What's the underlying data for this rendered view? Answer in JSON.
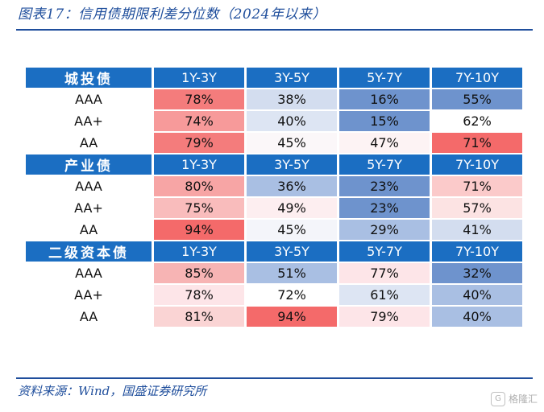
{
  "title": "图表17：信用债期限利差分位数（2024年以来）",
  "source": "资料来源：Wind，国盛证券研究所",
  "watermark": "格隆汇",
  "watermark_icon": "g-logo-icon",
  "colors": {
    "header": "#1b6ec2",
    "rule": "#1f4e9c"
  },
  "columns": [
    "1Y-3Y",
    "3Y-5Y",
    "5Y-7Y",
    "7Y-10Y"
  ],
  "sections": [
    {
      "name": "城投债",
      "rows": [
        {
          "label": "AAA",
          "cells": [
            {
              "text": "78%",
              "bg": "#f47c7c"
            },
            {
              "text": "38%",
              "bg": "#d3ddef"
            },
            {
              "text": "16%",
              "bg": "#6e93cd"
            },
            {
              "text": "55%",
              "bg": "#6e93cd"
            }
          ]
        },
        {
          "label": "AA+",
          "cells": [
            {
              "text": "74%",
              "bg": "#f79a9a"
            },
            {
              "text": "40%",
              "bg": "#dde5f3"
            },
            {
              "text": "15%",
              "bg": "#6e93cd"
            },
            {
              "text": "62%",
              "bg": "#ffffff"
            }
          ]
        },
        {
          "label": "AA",
          "cells": [
            {
              "text": "79%",
              "bg": "#f47c7c"
            },
            {
              "text": "45%",
              "bg": "#fbf7f9"
            },
            {
              "text": "47%",
              "bg": "#fdf3f4"
            },
            {
              "text": "71%",
              "bg": "#f46a6a"
            }
          ]
        }
      ]
    },
    {
      "name": "产业债",
      "rows": [
        {
          "label": "AAA",
          "cells": [
            {
              "text": "80%",
              "bg": "#f7a5a5"
            },
            {
              "text": "36%",
              "bg": "#a9bfe3"
            },
            {
              "text": "23%",
              "bg": "#6e93cd"
            },
            {
              "text": "71%",
              "bg": "#fbcaca"
            }
          ]
        },
        {
          "label": "AA+",
          "cells": [
            {
              "text": "75%",
              "bg": "#f9bcbc"
            },
            {
              "text": "49%",
              "bg": "#fdeef0"
            },
            {
              "text": "23%",
              "bg": "#6e93cd"
            },
            {
              "text": "57%",
              "bg": "#fce3e3"
            }
          ]
        },
        {
          "label": "AA",
          "cells": [
            {
              "text": "94%",
              "bg": "#f46a6a"
            },
            {
              "text": "45%",
              "bg": "#f4f5fa"
            },
            {
              "text": "29%",
              "bg": "#a9bfe3"
            },
            {
              "text": "41%",
              "bg": "#d3ddef"
            }
          ]
        }
      ]
    },
    {
      "name": "二级资本债",
      "rows": [
        {
          "label": "AAA",
          "cells": [
            {
              "text": "85%",
              "bg": "#f7b4b4"
            },
            {
              "text": "51%",
              "bg": "#a9bfe3"
            },
            {
              "text": "77%",
              "bg": "#fde5e8"
            },
            {
              "text": "32%",
              "bg": "#6e93cd"
            }
          ]
        },
        {
          "label": "AA+",
          "cells": [
            {
              "text": "78%",
              "bg": "#fde5e8"
            },
            {
              "text": "72%",
              "bg": "#ffffff"
            },
            {
              "text": "61%",
              "bg": "#dde5f3"
            },
            {
              "text": "40%",
              "bg": "#a9bfe3"
            }
          ]
        },
        {
          "label": "AA",
          "cells": [
            {
              "text": "81%",
              "bg": "#fad4d4"
            },
            {
              "text": "94%",
              "bg": "#f46a6a"
            },
            {
              "text": "79%",
              "bg": "#fde5e8"
            },
            {
              "text": "40%",
              "bg": "#a9bfe3"
            }
          ]
        }
      ]
    }
  ]
}
